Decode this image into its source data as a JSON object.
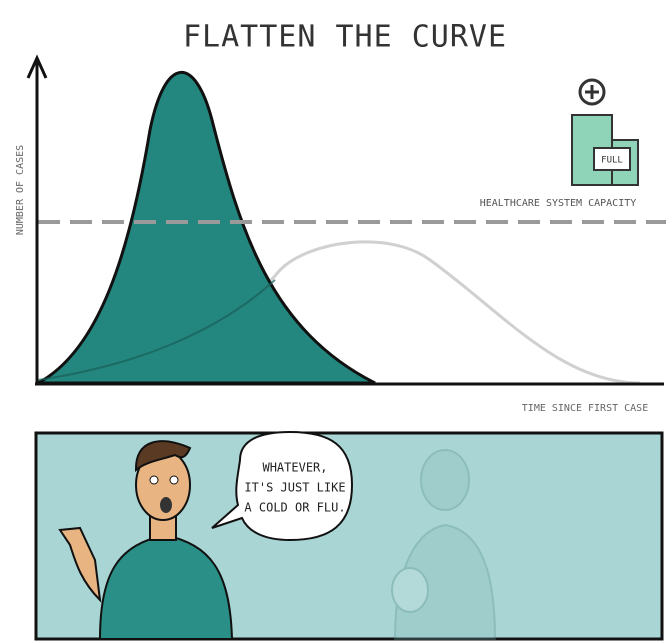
{
  "title": "FLATTEN THE CURVE",
  "y_axis_label": "NUMBER OF CASES",
  "x_axis_label": "TIME SINCE FIRST CASE",
  "capacity_label": "HEALTHCARE SYSTEM CAPACITY",
  "hospital_sign": "FULL",
  "speech_bubble": {
    "lines": [
      "WHATEVER,",
      "IT'S JUST LIKE",
      "A COLD OR FLU."
    ]
  }
}
